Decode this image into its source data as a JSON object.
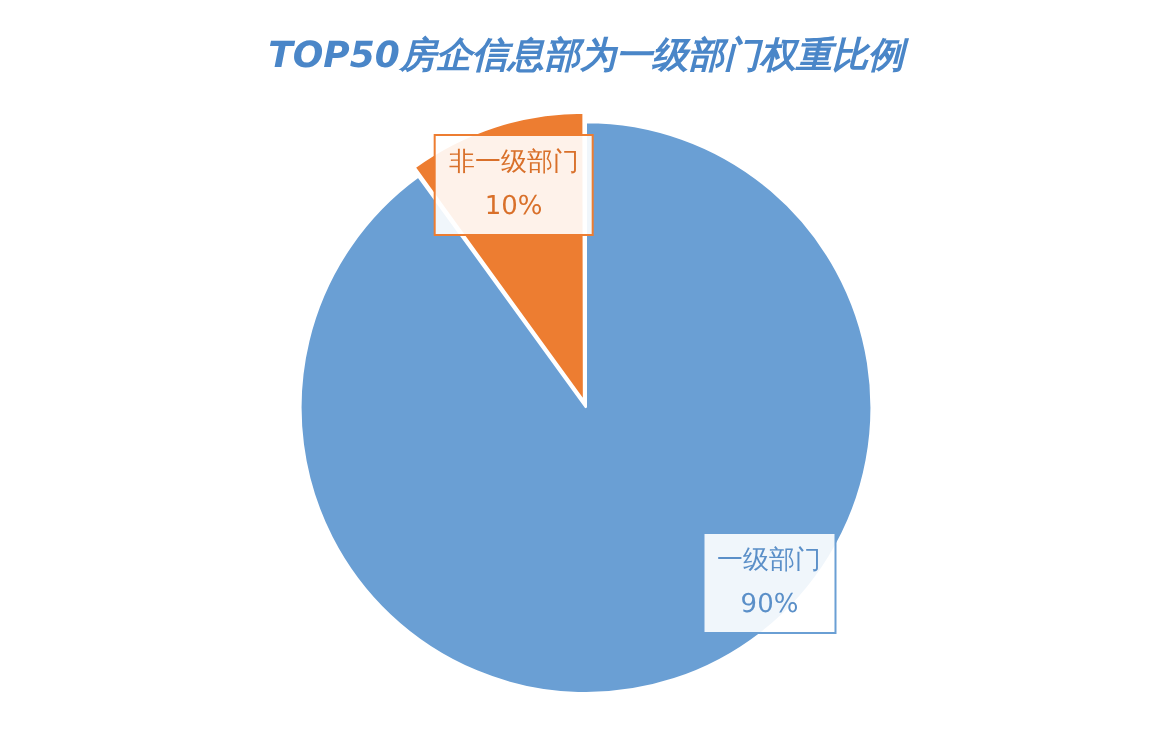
{
  "chart_data": {
    "type": "pie",
    "title": "TOP50房企信息部为一级部门权重比例",
    "categories": [
      "一级部门",
      "非一级部门"
    ],
    "values": [
      90,
      10
    ],
    "value_labels": [
      "90%",
      "10%"
    ],
    "colors": [
      "#6a9fd4",
      "#ed7d31"
    ],
    "legend": false
  }
}
